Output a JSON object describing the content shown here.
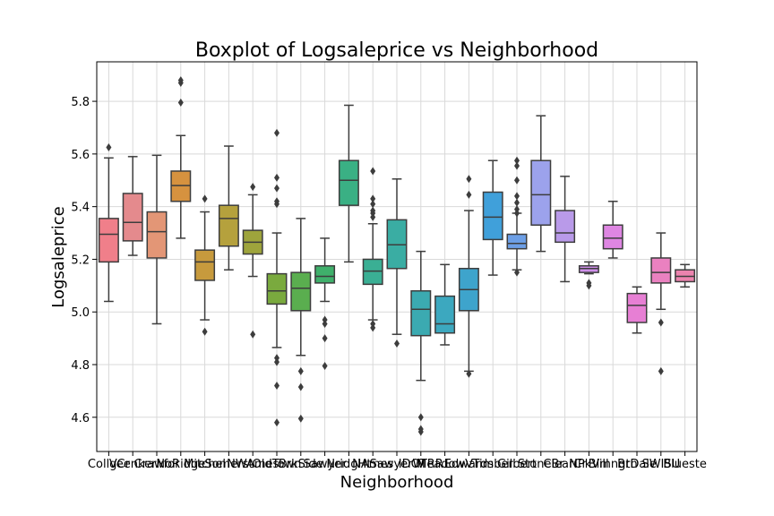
{
  "chart_data": {
    "type": "box",
    "title": "Boxplot of Logsaleprice vs Neighborhood",
    "xlabel": "Neighborhood",
    "ylabel": "Logsaleprice",
    "ylim": [
      4.47,
      5.95
    ],
    "yticks": [
      "4.6",
      "4.8",
      "5.0",
      "5.2",
      "5.4",
      "5.6",
      "5.8"
    ],
    "grid": true,
    "categories": [
      "CollgCr",
      "Veenker",
      "Crawfor",
      "NoRidge",
      "Mitchel",
      "Somerst",
      "NWAmes",
      "OldTown",
      "BrkSide",
      "Sawyer",
      "NridgHt",
      "NAmes",
      "SawyerW",
      "IDOTRR",
      "MeadowV",
      "Edwards",
      "Timber",
      "Gilbert",
      "StoneBr",
      "ClearCr",
      "NPkVill",
      "Blmngtn",
      "BrDale",
      "SWISU",
      "Blueste"
    ],
    "boxes": [
      {
        "q1": 5.19,
        "median": 5.295,
        "q3": 5.355,
        "whislo": 5.04,
        "whishi": 5.585,
        "fliers": [
          5.625
        ],
        "color": "#f07f8a"
      },
      {
        "q1": 5.27,
        "median": 5.34,
        "q3": 5.45,
        "whislo": 5.215,
        "whishi": 5.59,
        "fliers": [],
        "color": "#e48a8d"
      },
      {
        "q1": 5.205,
        "median": 5.305,
        "q3": 5.38,
        "whislo": 4.955,
        "whishi": 5.595,
        "fliers": [],
        "color": "#e39676"
      },
      {
        "q1": 5.42,
        "median": 5.48,
        "q3": 5.535,
        "whislo": 5.28,
        "whishi": 5.67,
        "fliers": [
          5.795,
          5.87,
          5.88
        ],
        "color": "#d6923f"
      },
      {
        "q1": 5.12,
        "median": 5.19,
        "q3": 5.235,
        "whislo": 4.97,
        "whishi": 5.38,
        "fliers": [
          5.43,
          4.925
        ],
        "color": "#c79a3d"
      },
      {
        "q1": 5.25,
        "median": 5.355,
        "q3": 5.405,
        "whislo": 5.16,
        "whishi": 5.63,
        "fliers": [],
        "color": "#b5a13d"
      },
      {
        "q1": 5.22,
        "median": 5.265,
        "q3": 5.31,
        "whislo": 5.135,
        "whishi": 5.445,
        "fliers": [
          5.475,
          4.915
        ],
        "color": "#9ea43c"
      },
      {
        "q1": 5.03,
        "median": 5.08,
        "q3": 5.145,
        "whislo": 4.865,
        "whishi": 5.3,
        "fliers": [
          5.68,
          5.51,
          5.47,
          5.42,
          5.41,
          4.825,
          4.81,
          4.72,
          4.58
        ],
        "color": "#7aaa3e"
      },
      {
        "q1": 5.005,
        "median": 5.09,
        "q3": 5.15,
        "whislo": 4.835,
        "whishi": 5.355,
        "fliers": [
          4.775,
          4.715,
          4.595
        ],
        "color": "#5aae4f"
      },
      {
        "q1": 5.11,
        "median": 5.135,
        "q3": 5.175,
        "whislo": 5.04,
        "whishi": 5.28,
        "fliers": [
          4.97,
          4.955,
          4.9,
          4.795
        ],
        "color": "#3fb06b"
      },
      {
        "q1": 5.405,
        "median": 5.5,
        "q3": 5.575,
        "whislo": 5.19,
        "whishi": 5.785,
        "fliers": [],
        "color": "#3ab084"
      },
      {
        "q1": 5.105,
        "median": 5.155,
        "q3": 5.2,
        "whislo": 4.97,
        "whishi": 5.335,
        "fliers": [
          5.535,
          5.43,
          5.41,
          5.385,
          5.375,
          5.36,
          4.955,
          4.94
        ],
        "color": "#3aaf94"
      },
      {
        "q1": 5.165,
        "median": 5.255,
        "q3": 5.35,
        "whislo": 4.915,
        "whishi": 5.505,
        "fliers": [
          4.88
        ],
        "color": "#3aada3"
      },
      {
        "q1": 4.91,
        "median": 5.01,
        "q3": 5.08,
        "whislo": 4.74,
        "whishi": 5.23,
        "fliers": [
          4.6,
          4.555,
          4.545
        ],
        "color": "#3baab1"
      },
      {
        "q1": 4.92,
        "median": 4.955,
        "q3": 5.06,
        "whislo": 4.875,
        "whishi": 5.18,
        "fliers": [],
        "color": "#3ca8bf"
      },
      {
        "q1": 5.005,
        "median": 5.085,
        "q3": 5.165,
        "whislo": 4.775,
        "whishi": 5.385,
        "fliers": [
          5.505,
          5.445,
          4.765
        ],
        "color": "#3ea4cc"
      },
      {
        "q1": 5.275,
        "median": 5.36,
        "q3": 5.455,
        "whislo": 5.14,
        "whishi": 5.575,
        "fliers": [],
        "color": "#40a0da"
      },
      {
        "q1": 5.24,
        "median": 5.26,
        "q3": 5.295,
        "whislo": 5.16,
        "whishi": 5.375,
        "fliers": [
          5.575,
          5.555,
          5.5,
          5.44,
          5.415,
          5.39,
          5.375,
          5.15
        ],
        "color": "#6d9fe6"
      },
      {
        "q1": 5.33,
        "median": 5.445,
        "q3": 5.575,
        "whislo": 5.23,
        "whishi": 5.745,
        "fliers": [],
        "color": "#9ca2ec"
      },
      {
        "q1": 5.265,
        "median": 5.3,
        "q3": 5.385,
        "whislo": 5.115,
        "whishi": 5.515,
        "fliers": [],
        "color": "#b99ae9"
      },
      {
        "q1": 5.15,
        "median": 5.165,
        "q3": 5.175,
        "whislo": 5.145,
        "whishi": 5.19,
        "fliers": [
          5.11,
          5.1
        ],
        "color": "#cd8fe8"
      },
      {
        "q1": 5.24,
        "median": 5.28,
        "q3": 5.33,
        "whislo": 5.205,
        "whishi": 5.42,
        "fliers": [],
        "color": "#de86e2"
      },
      {
        "q1": 4.96,
        "median": 5.025,
        "q3": 5.07,
        "whislo": 4.92,
        "whishi": 5.095,
        "fliers": [],
        "color": "#e77fd4"
      },
      {
        "q1": 5.11,
        "median": 5.15,
        "q3": 5.205,
        "whislo": 5.01,
        "whishi": 5.3,
        "fliers": [
          4.96,
          4.775
        ],
        "color": "#ea81c0"
      },
      {
        "q1": 5.115,
        "median": 5.135,
        "q3": 5.16,
        "whislo": 5.095,
        "whishi": 5.18,
        "fliers": [],
        "color": "#ec83ae"
      }
    ]
  }
}
